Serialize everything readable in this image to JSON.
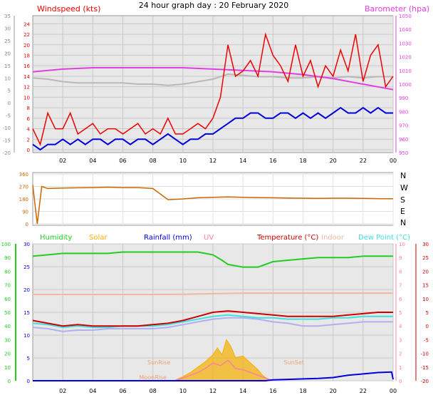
{
  "page_title": "24 hour graph day : 20 February 2020",
  "colors": {
    "bg": "#ffffff",
    "plot_bg": "#e8e8e8",
    "grid": "#c8c8c8",
    "wind_red": "#ee0000",
    "baro_magenta": "#e040e0",
    "blue": "#0000dd",
    "gray": "#b8b8b8",
    "orange": "#cc6600",
    "green": "#22cc22",
    "salmon": "#f0b8a0",
    "cyan": "#40e0e0",
    "lavender": "#b0b0f0",
    "solar": "#f5b000",
    "pink": "#ff7fa0",
    "dark_red": "#cc0000"
  },
  "chart_data": [
    {
      "type": "line",
      "name": "wind-baro",
      "left_label": "Windspeed (kts)",
      "right_label": "Barometer (hpa)",
      "x_ticks": [
        "02",
        "04",
        "06",
        "08",
        "10",
        "12",
        "14",
        "16",
        "18",
        "20",
        "22",
        "00"
      ],
      "x_range_hours": [
        0,
        24
      ],
      "left_inner_ticks": [
        "0",
        "2",
        "4",
        "6",
        "8",
        "10",
        "12",
        "14",
        "16",
        "18",
        "20",
        "22",
        "24"
      ],
      "left_inner_range": [
        0,
        25
      ],
      "left_outer_ticks": [
        "-20",
        "-15",
        "-10",
        "-5",
        "0",
        "5",
        "10",
        "15",
        "20",
        "25",
        "30",
        "35"
      ],
      "left_outer_range": [
        -20,
        35
      ],
      "right_ticks": [
        "950",
        "960",
        "970",
        "980",
        "990",
        "1000",
        "1010",
        "1020",
        "1030",
        "1040",
        "1050"
      ],
      "right_range": [
        950,
        1050
      ],
      "series": [
        {
          "key": "gust",
          "x": [
            0.0,
            0.5,
            1.0,
            1.5,
            2.0,
            2.5,
            3.0,
            3.5,
            4.0,
            4.5,
            5.0,
            5.5,
            6.0,
            6.5,
            7.0,
            7.5,
            8.0,
            8.5,
            9.0,
            9.5,
            10.0,
            10.5,
            11.0,
            11.5,
            12.0,
            12.5,
            13.0,
            13.5,
            14.0,
            14.5,
            15.0,
            15.5,
            16.0,
            16.5,
            17.0,
            17.5,
            18.0,
            18.5,
            19.0,
            19.5,
            20.0,
            20.5,
            21.0,
            21.5,
            22.0,
            22.5,
            23.0,
            23.5,
            24.0
          ],
          "y": [
            4,
            1,
            7,
            4,
            4,
            7,
            3,
            4,
            5,
            3,
            4,
            4,
            3,
            4,
            5,
            3,
            4,
            3,
            6,
            3,
            3,
            4,
            5,
            4,
            6,
            10,
            20,
            14,
            15,
            17,
            14,
            22,
            18,
            16,
            13,
            20,
            14,
            17,
            12,
            16,
            14,
            19,
            15,
            22,
            13,
            18,
            20,
            12,
            14
          ]
        },
        {
          "key": "avg",
          "x": [
            0.0,
            0.5,
            1.0,
            1.5,
            2.0,
            2.5,
            3.0,
            3.5,
            4.0,
            4.5,
            5.0,
            5.5,
            6.0,
            6.5,
            7.0,
            7.5,
            8.0,
            8.5,
            9.0,
            9.5,
            10.0,
            10.5,
            11.0,
            11.5,
            12.0,
            12.5,
            13.0,
            13.5,
            14.0,
            14.5,
            15.0,
            15.5,
            16.0,
            16.5,
            17.0,
            17.5,
            18.0,
            18.5,
            19.0,
            19.5,
            20.0,
            20.5,
            21.0,
            21.5,
            22.0,
            22.5,
            23.0,
            23.5,
            24.0
          ],
          "y": [
            1,
            0,
            1,
            1,
            2,
            1,
            2,
            1,
            2,
            2,
            1,
            2,
            2,
            1,
            2,
            2,
            1,
            2,
            3,
            2,
            1,
            2,
            2,
            3,
            3,
            4,
            5,
            6,
            6,
            7,
            7,
            6,
            6,
            7,
            7,
            6,
            7,
            6,
            7,
            6,
            7,
            8,
            7,
            7,
            8,
            7,
            8,
            7,
            7
          ]
        },
        {
          "key": "temp_gray",
          "x": [
            0,
            1,
            2,
            3,
            4,
            5,
            6,
            7,
            8,
            9,
            10,
            11,
            12,
            13,
            14,
            15,
            16,
            17,
            18,
            19,
            20,
            21,
            22,
            23,
            24
          ],
          "y": [
            10,
            9.5,
            8.5,
            8,
            8,
            8,
            8,
            7.5,
            7.5,
            7,
            7.5,
            8.5,
            9.5,
            11.5,
            11,
            10.5,
            10.5,
            10,
            10,
            10.5,
            10,
            10.5,
            10,
            10.5,
            10.5
          ]
        },
        {
          "key": "baro",
          "x": [
            0,
            2,
            4,
            6,
            8,
            10,
            12,
            14,
            16,
            18,
            20,
            22,
            24
          ],
          "y": [
            1009,
            1011,
            1012,
            1012,
            1012,
            1012,
            1011,
            1010,
            1009,
            1007,
            1004,
            1000,
            996
          ]
        }
      ]
    },
    {
      "type": "line",
      "name": "wind-direction",
      "y_ticks_left": [
        "0",
        "90",
        "180",
        "270",
        "360"
      ],
      "y_range": [
        0,
        360
      ],
      "y_ticks_right": [
        "N",
        "E",
        "S",
        "W",
        "N"
      ],
      "series": [
        {
          "key": "dir",
          "x": [
            0,
            0.3,
            0.6,
            1,
            2,
            3,
            4,
            5,
            6,
            7,
            8,
            9,
            10,
            11,
            12,
            13,
            14,
            15,
            16,
            17,
            18,
            19,
            20,
            21,
            22,
            23,
            24
          ],
          "y": [
            280,
            0,
            270,
            255,
            258,
            260,
            262,
            265,
            262,
            262,
            255,
            175,
            180,
            188,
            192,
            195,
            192,
            190,
            188,
            186,
            185,
            184,
            185,
            185,
            184,
            182,
            181
          ]
        }
      ]
    },
    {
      "type": "line",
      "name": "temp-hum-rain",
      "legend": [
        {
          "label": "Humidity",
          "color_key": "green"
        },
        {
          "label": "Solar",
          "color_key": "solar"
        },
        {
          "label": "Rainfall (mm)",
          "color_key": "blue"
        },
        {
          "label": "UV",
          "color_key": "pink"
        },
        {
          "label": "Temperature (°C)",
          "color_key": "dark_red"
        },
        {
          "label": "Indoor",
          "color_key": "salmon"
        },
        {
          "label": "Dew Point (°C)",
          "color_key": "cyan"
        }
      ],
      "annotations": [
        "SunRise",
        "SunSet",
        "MoonRise"
      ],
      "hum_ticks": [
        "0",
        "10",
        "20",
        "30",
        "40",
        "50",
        "60",
        "70",
        "80",
        "90",
        "100"
      ],
      "hum_range": [
        0,
        100
      ],
      "rain_ticks": [
        "0",
        "5",
        "10",
        "15",
        "20",
        "25",
        "30"
      ],
      "rain_range": [
        0,
        30
      ],
      "uv_ticks": [
        "0",
        "1",
        "2",
        "3",
        "4",
        "5",
        "6",
        "7",
        "8",
        "9",
        "10"
      ],
      "uv_range": [
        0,
        10
      ],
      "temp_ticks": [
        "-20",
        "-15",
        "-10",
        "-5",
        "0",
        "5",
        "10",
        "15",
        "20",
        "25",
        "30"
      ],
      "temp_range": [
        -20,
        30
      ],
      "series": [
        {
          "key": "humidity",
          "axis": "hum",
          "x": [
            0,
            1,
            2,
            3,
            4,
            5,
            6,
            7,
            8,
            9,
            10,
            11,
            12,
            12.6,
            13,
            14,
            15,
            15.5,
            16,
            17,
            18,
            19,
            20,
            21,
            22,
            23,
            24
          ],
          "y": [
            91,
            92,
            93,
            93,
            93,
            93,
            94,
            94,
            94,
            94,
            94,
            94,
            92,
            88,
            85,
            83,
            83,
            85,
            87,
            88,
            89,
            90,
            90,
            90,
            91,
            91,
            91
          ]
        },
        {
          "key": "indoor",
          "axis": "temp",
          "x": [
            0,
            2,
            4,
            6,
            8,
            10,
            12,
            14,
            16,
            18,
            20,
            22,
            24
          ],
          "y": [
            11.5,
            11.5,
            11.5,
            11.5,
            11.5,
            11.6,
            11.8,
            12,
            12,
            12,
            12,
            12,
            12
          ]
        },
        {
          "key": "temperature",
          "axis": "temp",
          "x": [
            0,
            1,
            2,
            3,
            4,
            5,
            6,
            7,
            8,
            9,
            10,
            11,
            12,
            13,
            14,
            15,
            16,
            17,
            18,
            19,
            20,
            21,
            22,
            23,
            24
          ],
          "y": [
            2,
            1,
            0,
            0.5,
            0,
            0,
            0,
            0,
            0.5,
            1,
            2,
            3.5,
            5,
            5.5,
            5,
            4.5,
            4,
            3.5,
            3.5,
            3.5,
            3.5,
            4,
            4.5,
            5,
            5
          ]
        },
        {
          "key": "dewpoint",
          "axis": "temp",
          "x": [
            0,
            1,
            2,
            3,
            4,
            5,
            6,
            7,
            8,
            9,
            10,
            11,
            12,
            13,
            14,
            15,
            16,
            17,
            18,
            19,
            20,
            21,
            22,
            23,
            24
          ],
          "y": [
            1,
            0.5,
            -0.5,
            0,
            -0.5,
            -0.5,
            0,
            0,
            0,
            0.5,
            1.5,
            2.5,
            3.5,
            4,
            3.5,
            3,
            3,
            2.5,
            2.5,
            2.5,
            3,
            3,
            3.5,
            3.5,
            3.5
          ]
        },
        {
          "key": "lav",
          "axis": "temp",
          "x": [
            0,
            1,
            2,
            3,
            4,
            5,
            6,
            7,
            8,
            9,
            10,
            11,
            12,
            13,
            14,
            15,
            16,
            17,
            18,
            19,
            20,
            21,
            22,
            23,
            24
          ],
          "y": [
            -0.5,
            -1,
            -2,
            -1.5,
            -1.5,
            -1,
            -1,
            -1,
            -1,
            -0.5,
            0.5,
            1.5,
            2.5,
            3,
            3,
            2.5,
            1.5,
            1,
            0,
            0,
            0.5,
            1,
            1.5,
            1.5,
            1.5
          ]
        },
        {
          "key": "rain",
          "axis": "rain",
          "x": [
            0,
            12,
            15.5,
            16,
            17,
            18,
            19,
            20,
            21,
            22,
            23,
            23.9,
            24
          ],
          "y": [
            0,
            0,
            0,
            0.2,
            0.3,
            0.4,
            0.5,
            0.7,
            1.2,
            1.5,
            1.8,
            1.9,
            0.3
          ]
        },
        {
          "key": "solar",
          "axis": "uv",
          "x": [
            9.4,
            10,
            10.5,
            11,
            11.5,
            12,
            12.3,
            12.6,
            12.9,
            13.2,
            13.5,
            14,
            14.5,
            15,
            15.3,
            15.8
          ],
          "y": [
            0,
            0.3,
            0.6,
            1,
            1.4,
            1.9,
            2.4,
            1.9,
            3.0,
            2.5,
            1.7,
            1.8,
            1.3,
            0.8,
            0.4,
            0
          ]
        },
        {
          "key": "uv",
          "axis": "uv",
          "x": [
            9.5,
            10,
            10.5,
            11,
            11.5,
            12,
            12.5,
            13,
            13.5,
            14,
            14.5,
            15,
            15.5,
            16
          ],
          "y": [
            0,
            0.2,
            0.4,
            0.6,
            0.9,
            1.3,
            1.1,
            1.5,
            0.9,
            0.8,
            0.6,
            0.4,
            0.2,
            0
          ]
        }
      ]
    }
  ]
}
